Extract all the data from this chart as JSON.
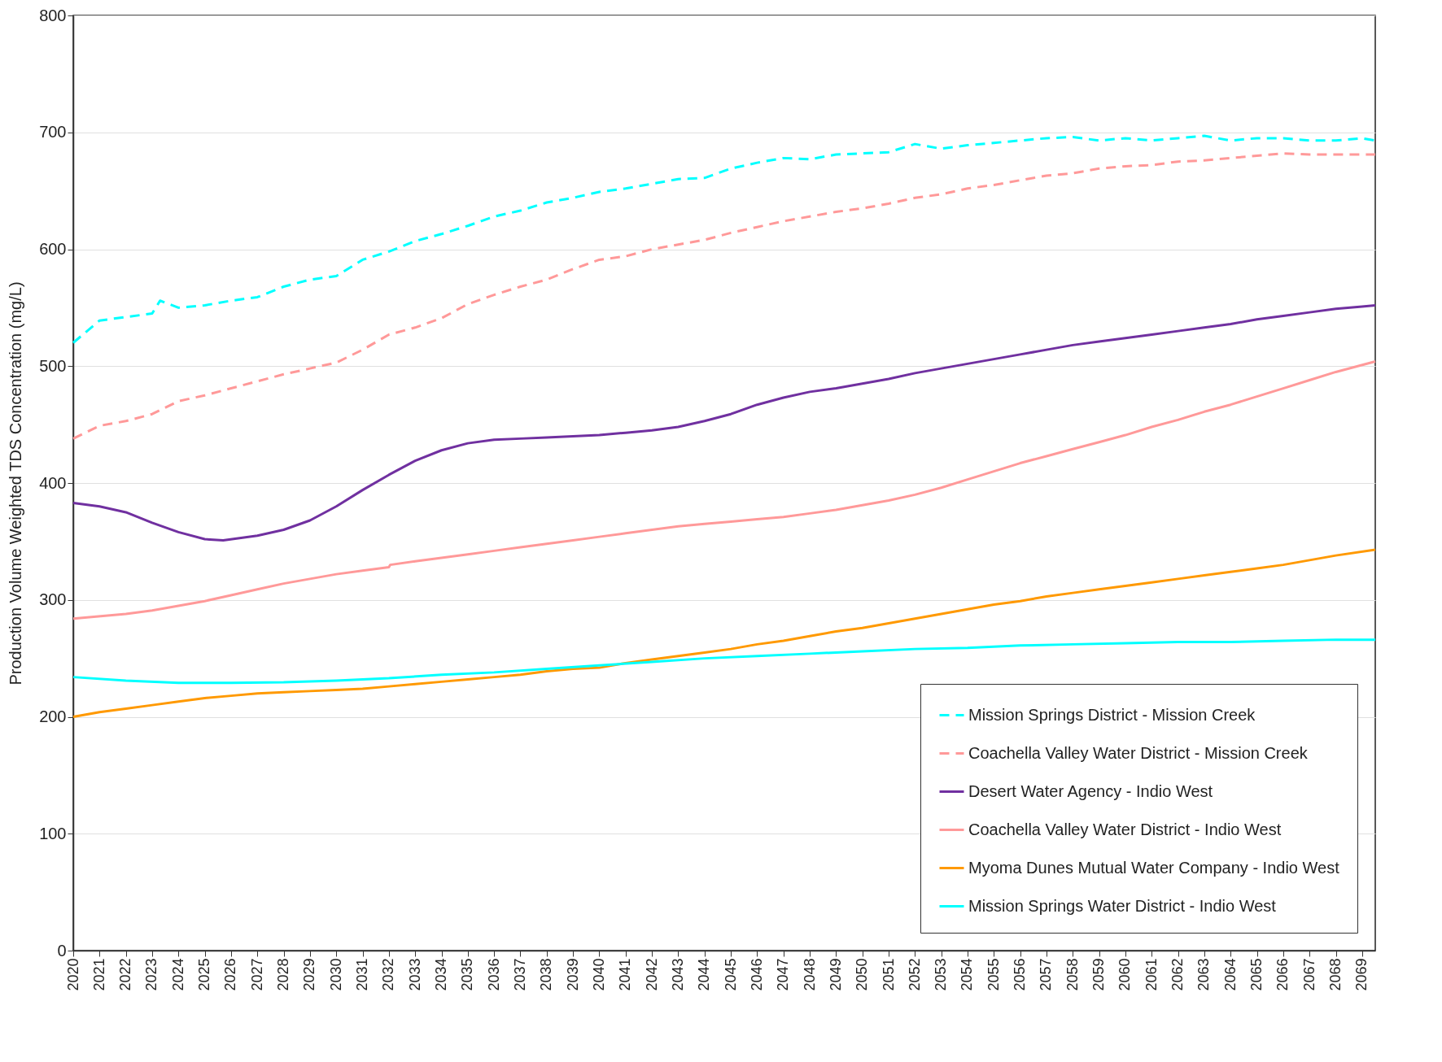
{
  "chart_data": {
    "type": "line",
    "ylabel": "Production Volume Weighted TDS Concentration (mg/L)",
    "xlim": [
      2020,
      2069.5
    ],
    "xticks": [
      2020,
      2021,
      2022,
      2023,
      2024,
      2025,
      2026,
      2027,
      2028,
      2029,
      2030,
      2031,
      2032,
      2033,
      2034,
      2035,
      2036,
      2037,
      2038,
      2039,
      2040,
      2041,
      2042,
      2043,
      2044,
      2045,
      2046,
      2047,
      2048,
      2049,
      2050,
      2051,
      2052,
      2053,
      2054,
      2055,
      2056,
      2057,
      2058,
      2059,
      2060,
      2061,
      2062,
      2063,
      2064,
      2065,
      2066,
      2067,
      2068,
      2069
    ],
    "ylim": [
      0,
      800
    ],
    "yticks": [
      0,
      100,
      200,
      300,
      400,
      500,
      600,
      700,
      800
    ],
    "grid": "y",
    "legend": "bottom right",
    "series": [
      {
        "name": "Mission Springs District - Mission Creek",
        "color": "#00ffff",
        "line_style": "dashed",
        "x": [
          2020,
          2021,
          2022,
          2023,
          2023.3,
          2024,
          2025,
          2026,
          2027,
          2028,
          2029,
          2030,
          2031,
          2032,
          2033,
          2034,
          2035,
          2036,
          2037,
          2038,
          2039,
          2040,
          2041,
          2042,
          2043,
          2044,
          2045,
          2046,
          2047,
          2048,
          2049,
          2050,
          2051,
          2052,
          2053,
          2054,
          2055,
          2056,
          2057,
          2058,
          2059,
          2060,
          2061,
          2062,
          2063,
          2064,
          2065,
          2066,
          2067,
          2068,
          2069,
          2069.5
        ],
        "values": [
          520,
          539,
          542,
          545,
          556,
          550,
          552,
          556,
          559,
          568,
          574,
          577,
          591,
          598,
          607,
          613,
          620,
          628,
          633,
          640,
          644,
          649,
          652,
          656,
          660,
          661,
          669,
          674,
          678,
          677,
          681,
          682,
          683,
          690,
          686,
          689,
          691,
          693,
          695,
          696,
          693,
          695,
          693,
          695,
          697,
          693,
          695,
          695,
          693,
          693,
          695,
          693
        ]
      },
      {
        "name": "Coachella Valley Water District - Mission Creek",
        "color": "#ff9999",
        "line_style": "dashed",
        "x": [
          2020,
          2021,
          2022,
          2023,
          2024,
          2025,
          2026,
          2027,
          2028,
          2029,
          2030,
          2031,
          2032,
          2033,
          2034,
          2035,
          2036,
          2037,
          2038,
          2039,
          2040,
          2041,
          2042,
          2043,
          2044,
          2045,
          2046,
          2047,
          2048,
          2049,
          2050,
          2051,
          2052,
          2053,
          2054,
          2055,
          2056,
          2057,
          2058,
          2059,
          2060,
          2061,
          2062,
          2063,
          2064,
          2065,
          2066,
          2067,
          2068,
          2069.5
        ],
        "values": [
          438,
          449,
          453,
          459,
          470,
          475,
          481,
          487,
          493,
          498,
          503,
          514,
          527,
          533,
          541,
          553,
          561,
          568,
          574,
          583,
          591,
          594,
          600,
          604,
          608,
          614,
          619,
          624,
          628,
          632,
          635,
          639,
          644,
          647,
          652,
          655,
          659,
          663,
          665,
          669,
          671,
          672,
          675,
          676,
          678,
          680,
          682,
          681,
          681,
          681
        ]
      },
      {
        "name": "Desert Water Agency - Indio West",
        "color": "#7030a0",
        "line_style": "solid",
        "x": [
          2020,
          2021,
          2022,
          2023,
          2024,
          2025,
          2025.7,
          2027,
          2028,
          2029,
          2030,
          2031,
          2032,
          2033,
          2034,
          2035,
          2036,
          2037,
          2038,
          2039,
          2040,
          2041,
          2042,
          2043,
          2044,
          2045,
          2046,
          2047,
          2048,
          2049,
          2050,
          2051,
          2052,
          2053,
          2054,
          2055,
          2056,
          2057,
          2058,
          2059,
          2060,
          2061,
          2062,
          2063,
          2064,
          2065,
          2066,
          2067,
          2068,
          2069,
          2069.5
        ],
        "values": [
          383,
          380,
          375,
          366,
          358,
          352,
          351,
          355,
          360,
          368,
          380,
          394,
          407,
          419,
          428,
          434,
          437,
          438,
          439,
          440,
          441,
          443,
          445,
          448,
          453,
          459,
          467,
          473,
          478,
          481,
          485,
          489,
          494,
          498,
          502,
          506,
          510,
          514,
          518,
          521,
          524,
          527,
          530,
          533,
          536,
          540,
          543,
          546,
          549,
          551,
          552
        ]
      },
      {
        "name": "Coachella Valley Water District - Indio West",
        "color": "#ff9999",
        "line_style": "solid",
        "x": [
          2020,
          2022,
          2023,
          2024,
          2025,
          2026,
          2027,
          2028,
          2029,
          2030,
          2031,
          2032,
          2032.05,
          2033,
          2034,
          2035,
          2036,
          2037,
          2038,
          2039,
          2040,
          2041,
          2042,
          2043,
          2044,
          2045,
          2046,
          2047,
          2048,
          2049,
          2050,
          2051,
          2052,
          2053,
          2054,
          2055,
          2056,
          2057,
          2058,
          2059,
          2060,
          2061,
          2062,
          2063,
          2064,
          2065,
          2066,
          2067,
          2068,
          2069.5
        ],
        "values": [
          284,
          288,
          291,
          295,
          299,
          304,
          309,
          314,
          318,
          322,
          325,
          328,
          330,
          333,
          336,
          339,
          342,
          345,
          348,
          351,
          354,
          357,
          360,
          363,
          365,
          367,
          369,
          371,
          374,
          377,
          381,
          385,
          390,
          396,
          403,
          410,
          417,
          423,
          429,
          435,
          441,
          448,
          454,
          461,
          467,
          474,
          481,
          488,
          495,
          504
        ]
      },
      {
        "name": "Myoma Dunes Mutual Water Company - Indio West",
        "color": "#ff9900",
        "line_style": "solid",
        "x": [
          2020,
          2021,
          2022,
          2023,
          2024,
          2025,
          2026,
          2027,
          2028,
          2029,
          2030,
          2031,
          2032,
          2033,
          2034,
          2035,
          2036,
          2037,
          2038,
          2039,
          2040,
          2041,
          2042,
          2043,
          2044,
          2045,
          2046,
          2047,
          2048,
          2049,
          2050,
          2051,
          2052,
          2053,
          2054,
          2055,
          2056,
          2057,
          2058,
          2059,
          2060,
          2061,
          2062,
          2063,
          2064,
          2065,
          2066,
          2067,
          2068,
          2069.5
        ],
        "values": [
          200,
          204,
          207,
          210,
          213,
          216,
          218,
          220,
          221,
          222,
          223,
          224,
          226,
          228,
          230,
          232,
          234,
          236,
          239,
          241,
          242,
          246,
          249,
          252,
          255,
          258,
          262,
          265,
          269,
          273,
          276,
          280,
          284,
          288,
          292,
          296,
          299,
          303,
          306,
          309,
          312,
          315,
          318,
          321,
          324,
          327,
          330,
          334,
          338,
          343
        ]
      },
      {
        "name": "Mission Springs Water District - Indio West",
        "color": "#00ffff",
        "line_style": "solid",
        "x": [
          2020,
          2022,
          2024,
          2026,
          2028,
          2030,
          2032,
          2034,
          2036,
          2038,
          2040,
          2042,
          2044,
          2046,
          2048,
          2050,
          2052,
          2054,
          2056,
          2058,
          2060,
          2062,
          2064,
          2066,
          2068,
          2069.5
        ],
        "values": [
          234,
          231,
          229,
          229,
          229.5,
          231,
          233,
          236,
          238,
          241,
          244,
          247,
          250,
          252,
          254,
          256,
          258,
          259,
          261,
          262,
          263,
          264,
          264,
          265,
          266,
          266
        ]
      }
    ]
  }
}
